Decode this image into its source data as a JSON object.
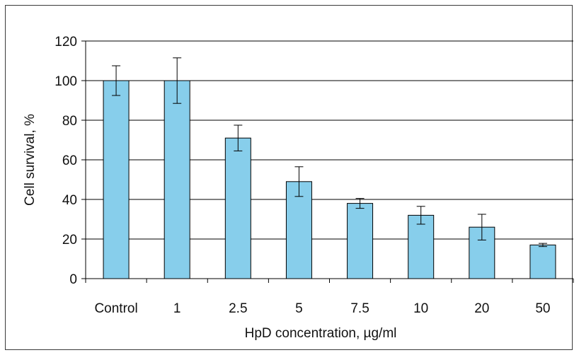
{
  "chart_data": {
    "type": "bar",
    "title": "",
    "xlabel": "HpD concentration, µg/ml",
    "ylabel": "Cell survival, %",
    "categories": [
      "Control",
      "1",
      "2.5",
      "5",
      "7.5",
      "10",
      "20",
      "50"
    ],
    "series": [
      {
        "values": [
          100,
          100,
          71,
          49,
          38,
          32,
          26,
          17
        ],
        "error": [
          7.5,
          11.5,
          6.5,
          7.5,
          2.5,
          4.5,
          6.5,
          0.8
        ]
      }
    ],
    "ylim": [
      0,
      120
    ],
    "yticks": [
      0,
      20,
      40,
      60,
      80,
      100,
      120
    ],
    "grid": "horizontal",
    "legend": "none",
    "bar_color": "#87ceeb",
    "bar_edge_color": "#000000"
  }
}
